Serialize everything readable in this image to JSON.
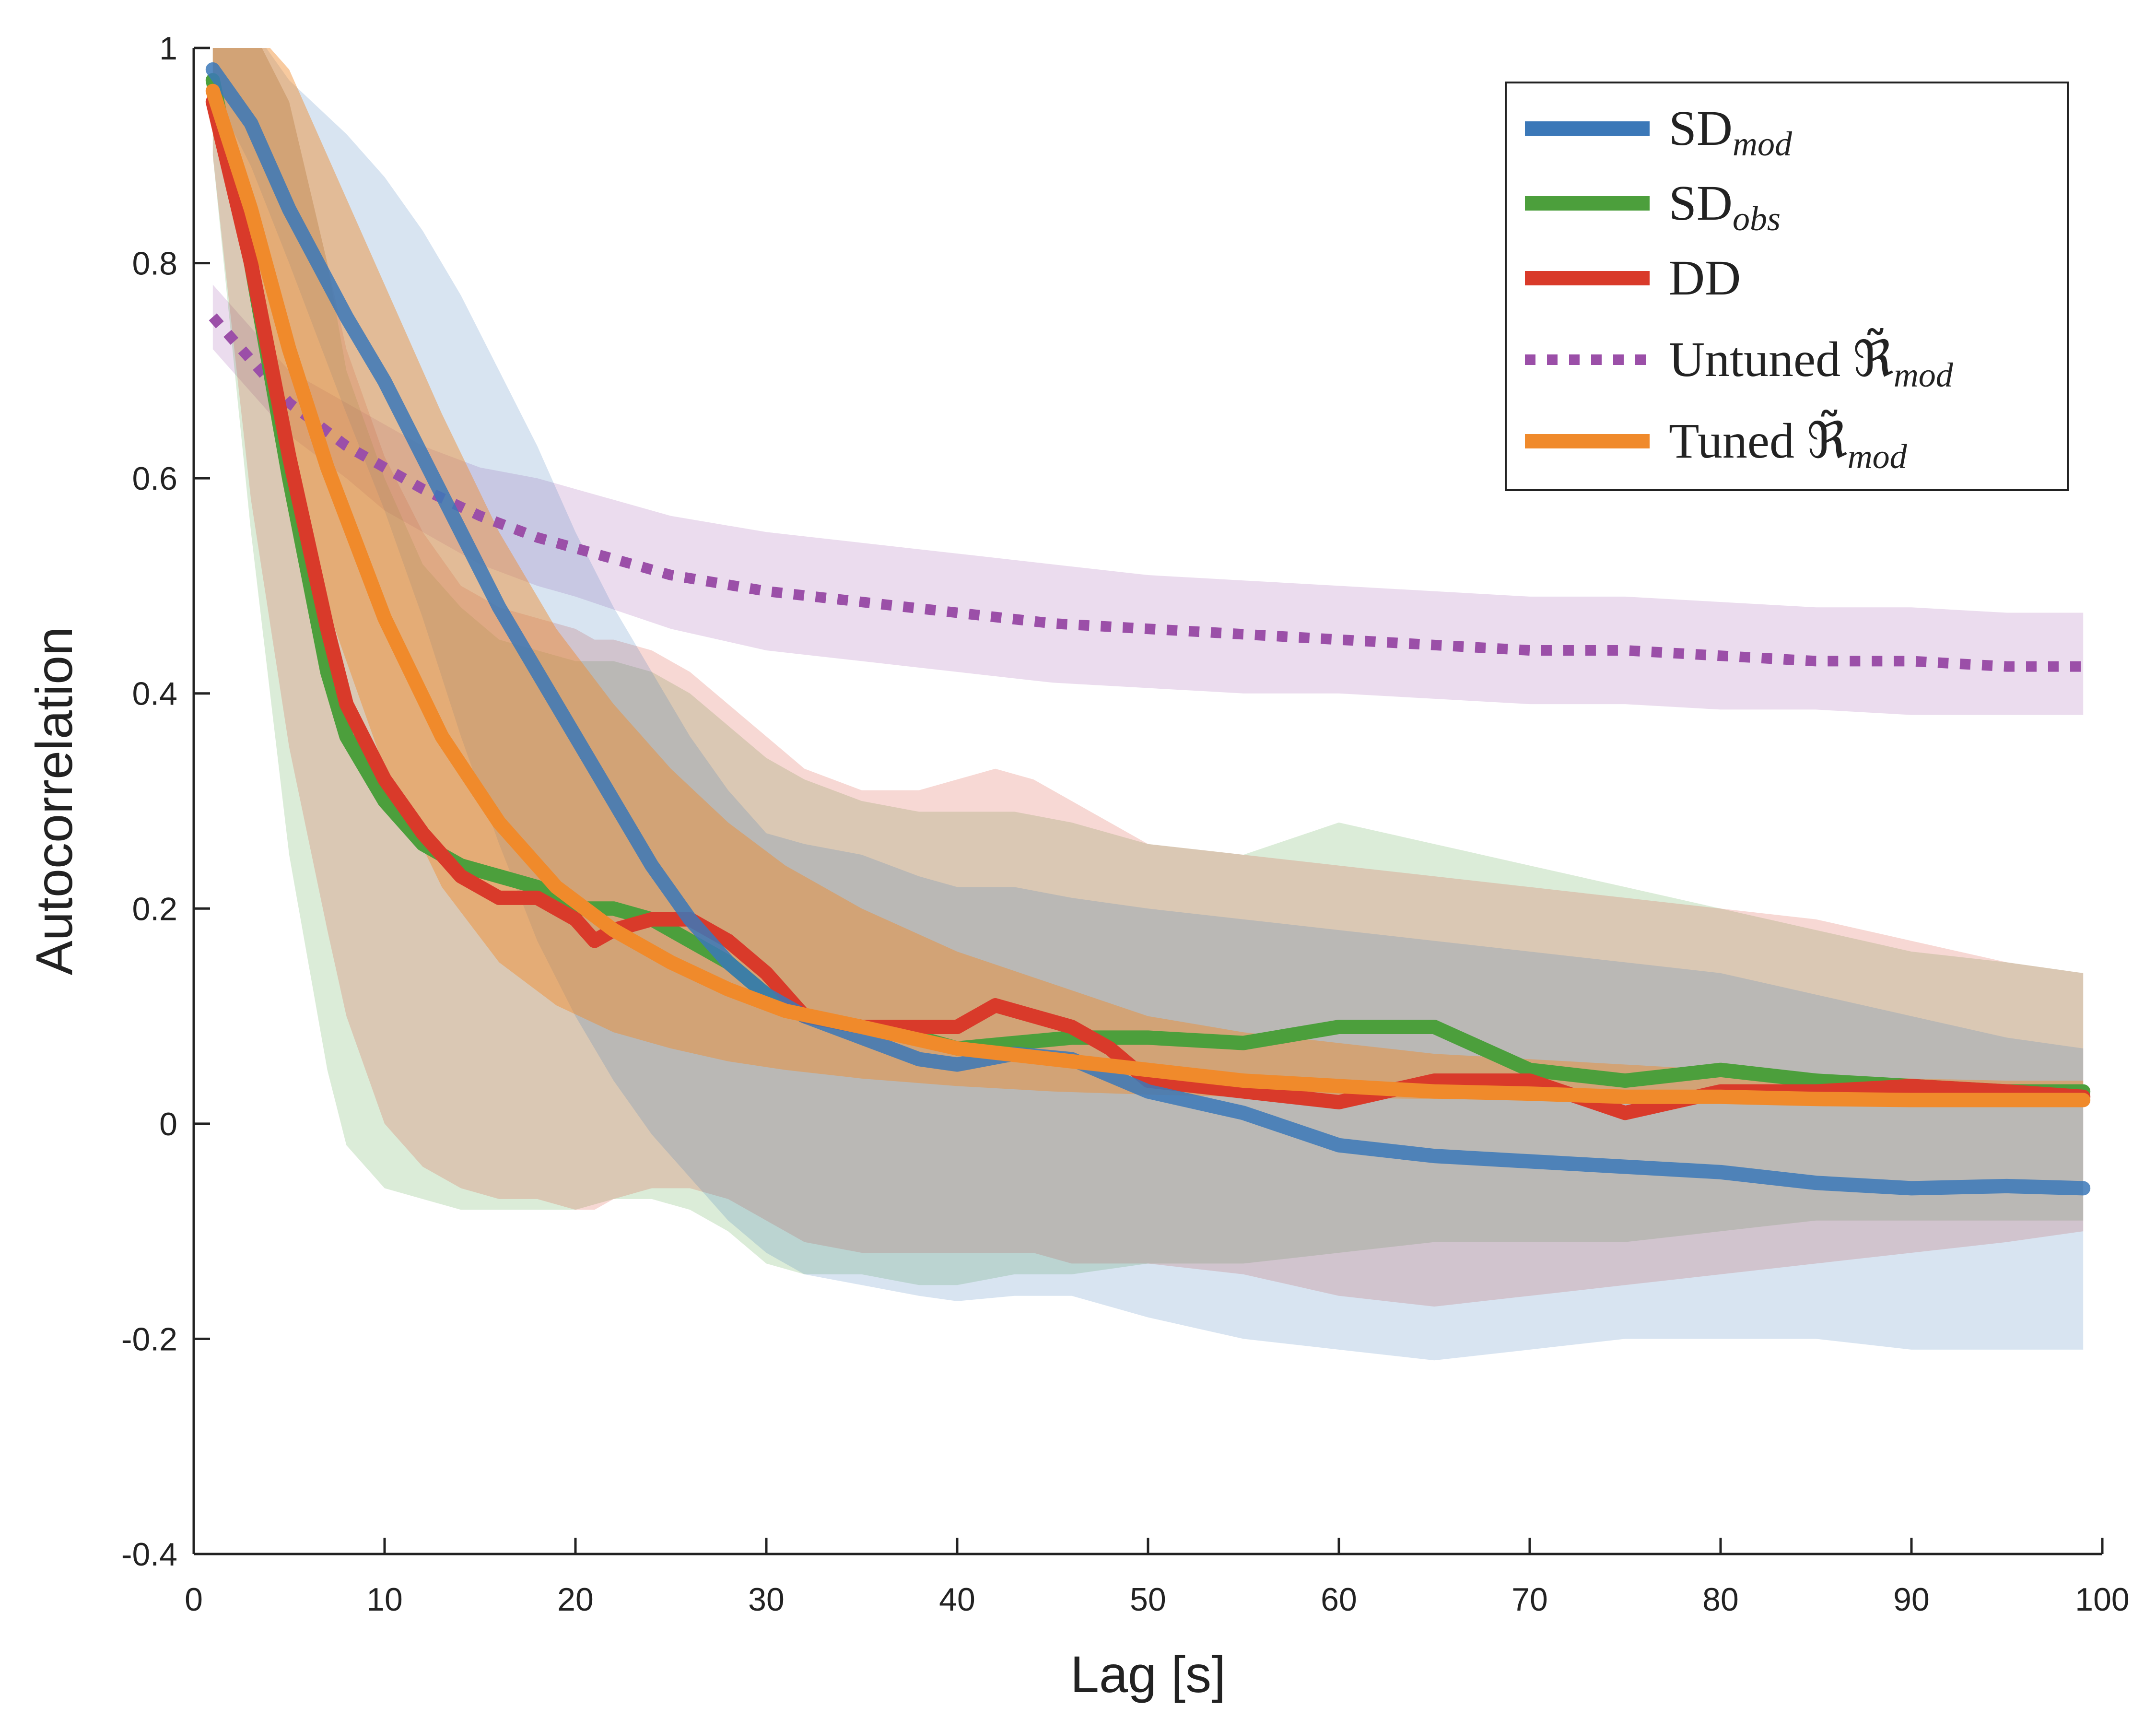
{
  "chart_data": {
    "type": "line",
    "xlabel": "Lag [s]",
    "ylabel": "Autocorrelation",
    "xlim": [
      0,
      100
    ],
    "ylim": [
      -0.4,
      1
    ],
    "xticks": [
      "0",
      "10",
      "20",
      "30",
      "40",
      "50",
      "60",
      "70",
      "80",
      "90",
      "100"
    ],
    "yticks": [
      "-0.4",
      "-0.2",
      "0",
      "0.2",
      "0.4",
      "0.6",
      "0.8",
      "1"
    ],
    "grid": false,
    "legend_position": "top-right",
    "legend": [
      {
        "base": "SD",
        "sub": "mod",
        "series": "sd_mod"
      },
      {
        "base": "SD",
        "sub": "obs",
        "series": "sd_obs"
      },
      {
        "base": "DD",
        "sub": "",
        "series": "dd"
      },
      {
        "base": "Untuned ℜ̃",
        "sub": "mod",
        "series": "untuned"
      },
      {
        "base": "Tuned ℜ̃",
        "sub": "mod",
        "series": "tuned"
      }
    ],
    "series": [
      {
        "key": "sd_mod",
        "color": "#3b78b8",
        "dashed": false,
        "x": [
          1,
          3,
          5,
          8,
          10,
          12,
          14,
          16,
          18,
          20,
          22,
          24,
          26,
          28,
          30,
          32,
          35,
          38,
          40,
          43,
          46,
          50,
          55,
          60,
          65,
          70,
          75,
          80,
          85,
          90,
          95,
          99
        ],
        "y": [
          0.98,
          0.93,
          0.85,
          0.75,
          0.69,
          0.62,
          0.55,
          0.48,
          0.42,
          0.36,
          0.3,
          0.24,
          0.19,
          0.15,
          0.12,
          0.1,
          0.08,
          0.06,
          0.055,
          0.065,
          0.06,
          0.03,
          0.01,
          -0.02,
          -0.03,
          -0.035,
          -0.04,
          -0.045,
          -0.055,
          -0.06,
          -0.058,
          -0.06
        ],
        "lower": [
          0.96,
          0.89,
          0.8,
          0.66,
          0.57,
          0.47,
          0.36,
          0.26,
          0.17,
          0.1,
          0.04,
          -0.01,
          -0.05,
          -0.09,
          -0.12,
          -0.14,
          -0.15,
          -0.16,
          -0.165,
          -0.16,
          -0.16,
          -0.18,
          -0.2,
          -0.21,
          -0.22,
          -0.21,
          -0.2,
          -0.2,
          -0.2,
          -0.21,
          -0.21,
          -0.21
        ],
        "upper": [
          1.02,
          1.02,
          0.97,
          0.92,
          0.88,
          0.83,
          0.77,
          0.7,
          0.63,
          0.55,
          0.48,
          0.42,
          0.36,
          0.31,
          0.27,
          0.26,
          0.25,
          0.23,
          0.22,
          0.22,
          0.21,
          0.2,
          0.19,
          0.18,
          0.17,
          0.16,
          0.15,
          0.14,
          0.12,
          0.1,
          0.08,
          0.07
        ]
      },
      {
        "key": "sd_obs",
        "color": "#4c9f3c",
        "dashed": false,
        "x": [
          1,
          3,
          5,
          7,
          8,
          10,
          12,
          14,
          16,
          18,
          20,
          22,
          24,
          26,
          28,
          30,
          32,
          35,
          38,
          40,
          43,
          46,
          50,
          55,
          60,
          65,
          70,
          75,
          80,
          85,
          90,
          95,
          99
        ],
        "y": [
          0.97,
          0.8,
          0.6,
          0.42,
          0.36,
          0.3,
          0.26,
          0.24,
          0.23,
          0.22,
          0.2,
          0.2,
          0.19,
          0.17,
          0.15,
          0.12,
          0.1,
          0.09,
          0.08,
          0.07,
          0.075,
          0.08,
          0.08,
          0.075,
          0.09,
          0.09,
          0.05,
          0.04,
          0.05,
          0.04,
          0.035,
          0.03,
          0.03
        ],
        "lower": [
          0.9,
          0.55,
          0.25,
          0.05,
          -0.02,
          -0.06,
          -0.07,
          -0.08,
          -0.08,
          -0.08,
          -0.08,
          -0.07,
          -0.07,
          -0.08,
          -0.1,
          -0.13,
          -0.14,
          -0.14,
          -0.15,
          -0.15,
          -0.14,
          -0.14,
          -0.13,
          -0.13,
          -0.12,
          -0.11,
          -0.11,
          -0.11,
          -0.1,
          -0.09,
          -0.09,
          -0.09,
          -0.09
        ],
        "upper": [
          1.02,
          1.02,
          0.95,
          0.8,
          0.7,
          0.6,
          0.52,
          0.48,
          0.45,
          0.44,
          0.43,
          0.43,
          0.42,
          0.4,
          0.37,
          0.34,
          0.32,
          0.3,
          0.29,
          0.29,
          0.29,
          0.28,
          0.26,
          0.25,
          0.28,
          0.26,
          0.24,
          0.22,
          0.2,
          0.18,
          0.16,
          0.15,
          0.14
        ]
      },
      {
        "key": "dd",
        "color": "#d93a2a",
        "dashed": false,
        "x": [
          1,
          3,
          5,
          7,
          8,
          10,
          12,
          14,
          16,
          18,
          20,
          21,
          22,
          24,
          26,
          28,
          30,
          32,
          35,
          38,
          40,
          42,
          44,
          46,
          48,
          50,
          55,
          60,
          65,
          70,
          75,
          80,
          85,
          90,
          95,
          99
        ],
        "y": [
          0.95,
          0.8,
          0.62,
          0.46,
          0.39,
          0.32,
          0.27,
          0.23,
          0.21,
          0.21,
          0.19,
          0.17,
          0.18,
          0.19,
          0.19,
          0.17,
          0.14,
          0.1,
          0.09,
          0.09,
          0.09,
          0.11,
          0.1,
          0.09,
          0.07,
          0.04,
          0.03,
          0.02,
          0.04,
          0.04,
          0.01,
          0.03,
          0.03,
          0.035,
          0.03,
          0.025
        ],
        "lower": [
          0.9,
          0.58,
          0.35,
          0.18,
          0.1,
          0.0,
          -0.04,
          -0.06,
          -0.07,
          -0.07,
          -0.08,
          -0.08,
          -0.07,
          -0.06,
          -0.06,
          -0.07,
          -0.09,
          -0.11,
          -0.12,
          -0.12,
          -0.12,
          -0.12,
          -0.12,
          -0.13,
          -0.13,
          -0.13,
          -0.14,
          -0.16,
          -0.17,
          -0.16,
          -0.15,
          -0.14,
          -0.13,
          -0.12,
          -0.11,
          -0.1
        ],
        "upper": [
          1.02,
          1.02,
          0.95,
          0.8,
          0.72,
          0.62,
          0.55,
          0.5,
          0.48,
          0.47,
          0.46,
          0.45,
          0.45,
          0.44,
          0.42,
          0.39,
          0.36,
          0.33,
          0.31,
          0.31,
          0.32,
          0.33,
          0.32,
          0.3,
          0.28,
          0.26,
          0.25,
          0.24,
          0.23,
          0.22,
          0.21,
          0.2,
          0.19,
          0.17,
          0.15,
          0.14
        ]
      },
      {
        "key": "untuned",
        "color": "#9b4fa8",
        "dashed": true,
        "x": [
          1,
          3,
          5,
          8,
          10,
          12,
          15,
          18,
          20,
          25,
          30,
          35,
          40,
          45,
          50,
          55,
          60,
          65,
          70,
          75,
          80,
          85,
          90,
          95,
          99
        ],
        "y": [
          0.75,
          0.71,
          0.67,
          0.63,
          0.61,
          0.59,
          0.565,
          0.545,
          0.535,
          0.51,
          0.495,
          0.485,
          0.475,
          0.465,
          0.46,
          0.455,
          0.45,
          0.445,
          0.44,
          0.44,
          0.435,
          0.43,
          0.43,
          0.425,
          0.425
        ],
        "lower": [
          0.72,
          0.68,
          0.64,
          0.6,
          0.57,
          0.55,
          0.52,
          0.5,
          0.49,
          0.46,
          0.44,
          0.43,
          0.42,
          0.41,
          0.405,
          0.4,
          0.4,
          0.395,
          0.39,
          0.39,
          0.385,
          0.385,
          0.38,
          0.38,
          0.38
        ],
        "upper": [
          0.78,
          0.74,
          0.7,
          0.67,
          0.65,
          0.63,
          0.61,
          0.6,
          0.59,
          0.565,
          0.55,
          0.54,
          0.53,
          0.52,
          0.51,
          0.505,
          0.5,
          0.495,
          0.49,
          0.49,
          0.485,
          0.48,
          0.48,
          0.475,
          0.475
        ]
      },
      {
        "key": "tuned",
        "color": "#f08a2b",
        "dashed": false,
        "x": [
          1,
          3,
          5,
          7,
          10,
          13,
          16,
          19,
          22,
          25,
          28,
          31,
          35,
          40,
          45,
          50,
          55,
          60,
          65,
          70,
          75,
          80,
          85,
          90,
          95,
          99
        ],
        "y": [
          0.96,
          0.85,
          0.72,
          0.61,
          0.47,
          0.36,
          0.28,
          0.22,
          0.18,
          0.15,
          0.125,
          0.105,
          0.09,
          0.07,
          0.06,
          0.05,
          0.04,
          0.035,
          0.03,
          0.028,
          0.025,
          0.025,
          0.023,
          0.022,
          0.022,
          0.022
        ],
        "lower": [
          0.92,
          0.78,
          0.62,
          0.48,
          0.33,
          0.22,
          0.15,
          0.11,
          0.085,
          0.07,
          0.058,
          0.05,
          0.042,
          0.035,
          0.03,
          0.027,
          0.025,
          0.024,
          0.023,
          0.022,
          0.022,
          0.021,
          0.021,
          0.02,
          0.02,
          0.02
        ],
        "upper": [
          1.02,
          1.02,
          0.98,
          0.9,
          0.78,
          0.66,
          0.55,
          0.46,
          0.39,
          0.33,
          0.28,
          0.24,
          0.2,
          0.16,
          0.13,
          0.1,
          0.085,
          0.075,
          0.065,
          0.06,
          0.055,
          0.05,
          0.045,
          0.042,
          0.04,
          0.04
        ]
      }
    ]
  }
}
